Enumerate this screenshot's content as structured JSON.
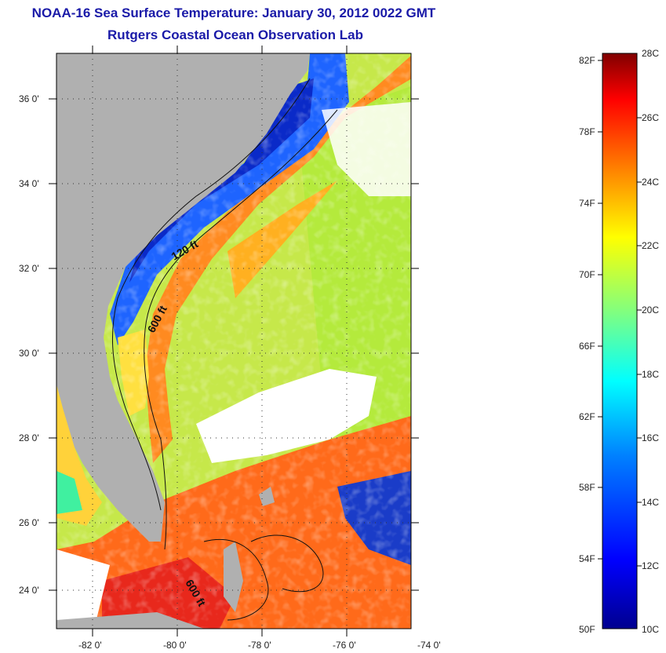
{
  "title": {
    "line1": "NOAA-16 Sea Surface Temperature:  January 30, 2012 0022 GMT",
    "line2": "Rutgers Coastal Ocean Observation Lab"
  },
  "map": {
    "lat_ticks": [
      "36 0'",
      "34 0'",
      "32 0'",
      "30 0'",
      "28 0'",
      "26 0'",
      "24 0'"
    ],
    "lon_ticks": [
      "-82 0'",
      "-80 0'",
      "-78 0'",
      "-76 0'",
      "-74 0'"
    ],
    "contour_labels": [
      "120 ft",
      "600 ft",
      "600 ft"
    ],
    "colors": {
      "land": "#b0b0b0",
      "cloud": "#ffffff"
    }
  },
  "colorbar": {
    "fahrenheit_labels": [
      "82F",
      "78F",
      "74F",
      "70F",
      "66F",
      "62F",
      "58F",
      "54F",
      "50F"
    ],
    "celsius_labels": [
      "28C",
      "26C",
      "24C",
      "22C",
      "20C",
      "18C",
      "16C",
      "14C",
      "12C",
      "10C"
    ],
    "colors": [
      "#00008f",
      "#0000ff",
      "#0080ff",
      "#00ffff",
      "#80ff80",
      "#ffff00",
      "#ff8000",
      "#ff0000",
      "#800000"
    ]
  }
}
